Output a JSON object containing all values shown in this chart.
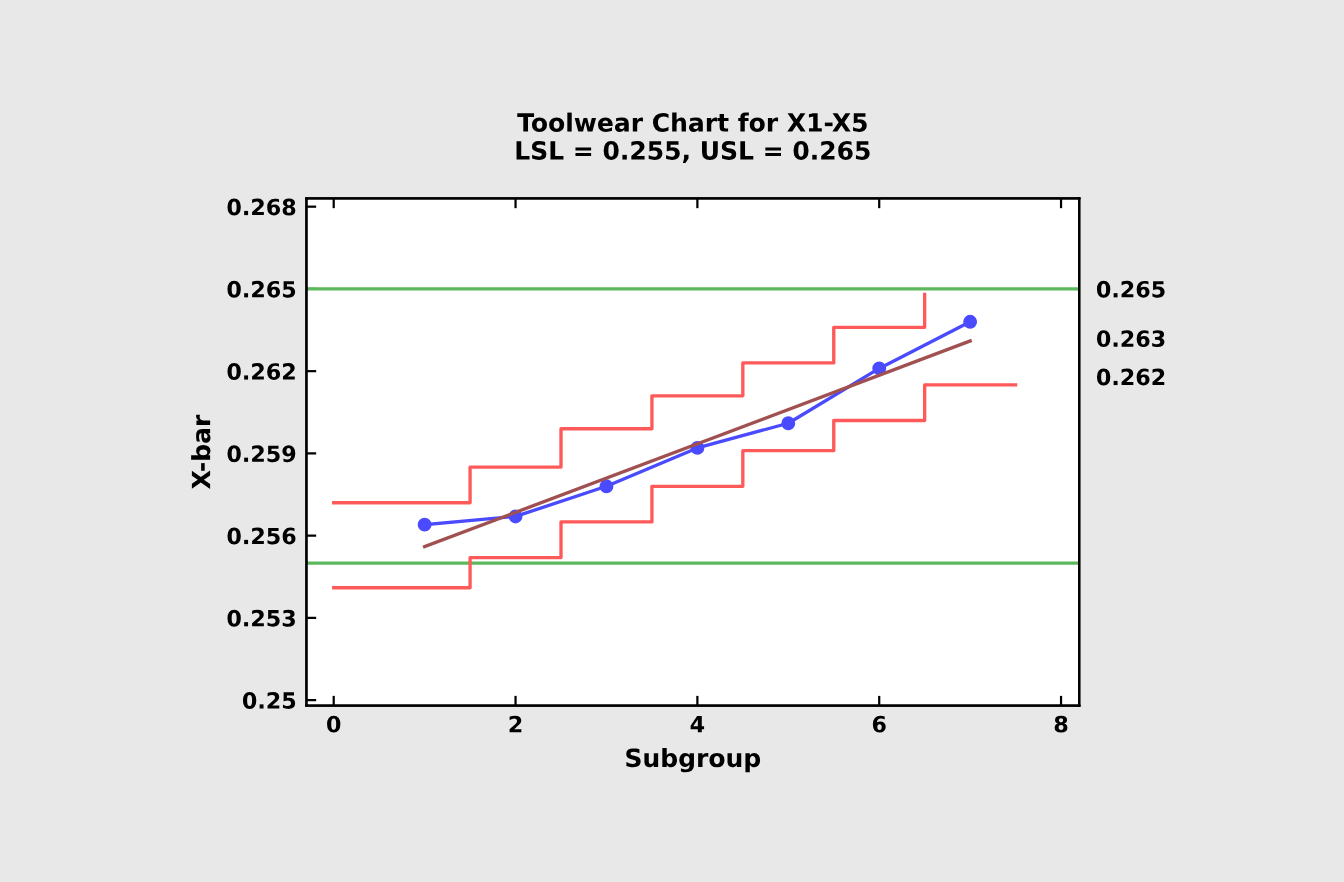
{
  "chart_data": {
    "type": "line",
    "title": "Toolwear Chart for X1-X5\nLSL = 0.255, USL = 0.265",
    "xlabel": "Subgroup",
    "ylabel": "X-bar",
    "xlim": [
      -0.3,
      8.2
    ],
    "xticks": [
      0,
      2,
      4,
      6,
      8
    ],
    "ylim": [
      0.2498,
      0.2683
    ],
    "yticks": [
      {
        "value": 0.25,
        "label": "0.25"
      },
      0.253,
      0.256,
      0.259,
      0.262,
      0.265,
      0.268
    ],
    "y2lim": [
      0.2498,
      0.2683
    ],
    "y2ticks": [
      {
        "value": 0.265,
        "label": "0.265"
      },
      {
        "value": 0.2632,
        "label": "0.263"
      },
      {
        "value": 0.2618,
        "label": "0.262"
      }
    ],
    "grid": false,
    "legend": false,
    "series": [
      {
        "color": "#4a4aff",
        "marker": "circle",
        "x": [
          1,
          2,
          3,
          4,
          5,
          6,
          7
        ],
        "values": [
          0.2564,
          0.2567,
          0.2578,
          0.2592,
          0.2601,
          0.2621,
          0.2638
        ]
      },
      {
        "color": "#a05050",
        "marker": "none",
        "x": [
          1,
          7
        ],
        "values": [
          0.2556,
          0.2631
        ]
      },
      {
        "type": "step",
        "color": "#ff5a5a",
        "marker": "none",
        "x": [
          0,
          1.5,
          2.5,
          3.5,
          4.5,
          5.5,
          6.5
        ],
        "values": [
          0.2572,
          0.2585,
          0.2599,
          0.2611,
          0.2623,
          0.2636,
          0.2648
        ]
      },
      {
        "type": "step",
        "color": "#ff5a5a",
        "marker": "none",
        "x": [
          0,
          1.5,
          2.5,
          3.5,
          4.5,
          5.5,
          6.5,
          7.5
        ],
        "values": [
          0.2541,
          0.2552,
          0.2565,
          0.2578,
          0.2591,
          0.2602,
          0.2615,
          0.2615
        ]
      }
    ],
    "ref_lines": [
      {
        "axis": "y",
        "value": 0.265,
        "color": "#5cb85c"
      },
      {
        "axis": "y",
        "value": 0.255,
        "color": "#5cb85c"
      }
    ]
  }
}
